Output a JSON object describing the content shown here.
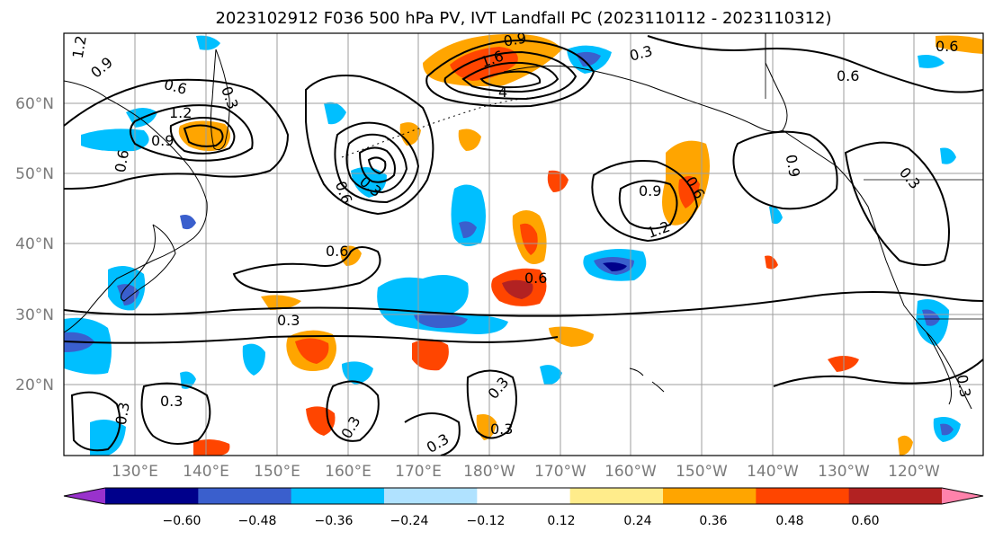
{
  "title": "2023102912 F036 500 hPa PV, IVT Landfall PC (2023110112 - 2023110312)",
  "map": {
    "lat_labels": [
      "60°N",
      "50°N",
      "40°N",
      "30°N",
      "20°N"
    ],
    "lon_labels": [
      "130°E",
      "140°E",
      "150°E",
      "160°E",
      "170°E",
      "180°W",
      "170°W",
      "160°W",
      "150°W",
      "140°W",
      "130°W",
      "120°W"
    ],
    "contour_labels": [
      "1.2",
      "0.9",
      "0.6",
      "0.3",
      "1.2",
      "0.9",
      "0.6",
      "1.6",
      "0.9",
      "0.3",
      "4",
      "0.3",
      "0.6",
      "0.9",
      "1.2",
      "0.6",
      "0.6",
      "0.3",
      "0.6",
      "0.3",
      "0.3",
      "0.3",
      "0.3",
      "0.3",
      "0.3",
      "0.6",
      "0.9",
      "0.3",
      "0.3",
      "0.6"
    ]
  },
  "colorbar": {
    "colors": [
      "#9932cc",
      "#00008b",
      "#3a5fcd",
      "#00bfff",
      "#b0e2ff",
      "#ffffff",
      "#ffec8b",
      "#ffa500",
      "#ff4500",
      "#b22222",
      "#ff82ab"
    ],
    "tick_labels": [
      "−0.60",
      "−0.48",
      "−0.36",
      "−0.24",
      "−0.12",
      "0.12",
      "0.24",
      "0.36",
      "0.48",
      "0.60"
    ]
  }
}
